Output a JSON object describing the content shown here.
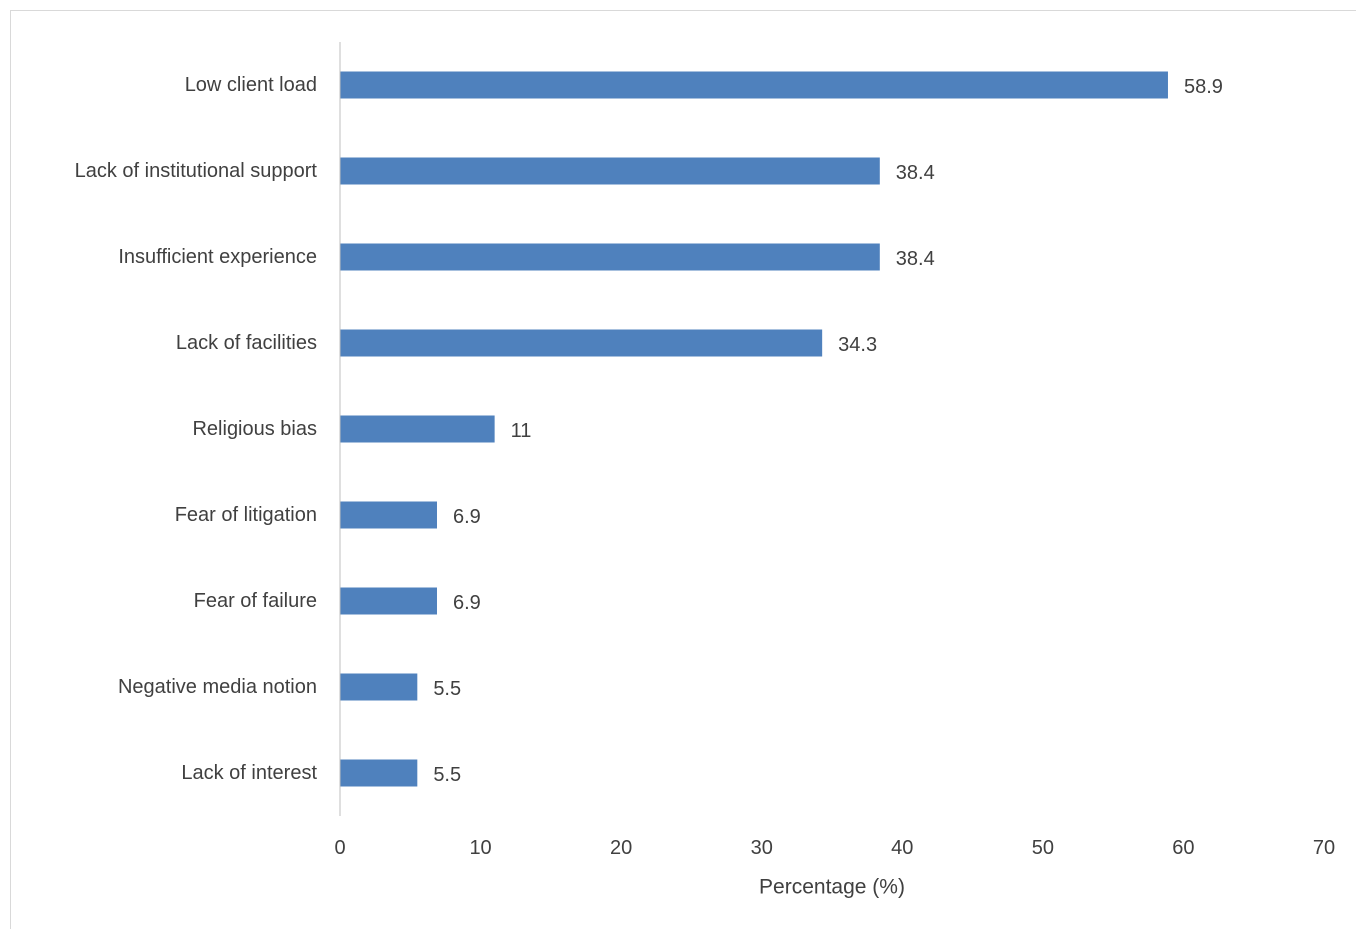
{
  "chart_data": {
    "type": "bar",
    "orientation": "horizontal",
    "categories": [
      "Low client load",
      "Lack of institutional support",
      "Insufficient experience",
      "Lack of facilities",
      "Religious bias",
      "Fear of litigation",
      "Fear of failure",
      "Negative media notion",
      "Lack of interest"
    ],
    "values": [
      58.9,
      38.4,
      38.4,
      34.3,
      11,
      6.9,
      6.9,
      5.5,
      5.5
    ],
    "data_labels": [
      "58.9",
      "38.4",
      "38.4",
      "34.3",
      "11",
      "6.9",
      "6.9",
      "5.5",
      "5.5"
    ],
    "title": "",
    "xlabel": "Percentage (%)",
    "ylabel": "",
    "xlim": [
      0,
      70
    ],
    "x_ticks": [
      0,
      10,
      20,
      30,
      40,
      50,
      60,
      70
    ],
    "grid": false,
    "legend": "none",
    "bar_color": "#4f81bd",
    "axis_color": "#bfbfbf",
    "text_color": "#404040"
  }
}
